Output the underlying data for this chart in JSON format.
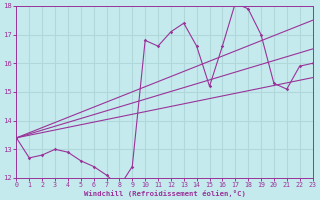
{
  "xlabel": "Windchill (Refroidissement éolien,°C)",
  "ylabel": "",
  "xlim": [
    0,
    23
  ],
  "ylim": [
    12,
    18
  ],
  "xticks": [
    0,
    1,
    2,
    3,
    4,
    5,
    6,
    7,
    8,
    9,
    10,
    11,
    12,
    13,
    14,
    15,
    16,
    17,
    18,
    19,
    20,
    21,
    22,
    23
  ],
  "yticks": [
    12,
    13,
    14,
    15,
    16,
    17,
    18
  ],
  "bg_color": "#c5eaed",
  "line_color": "#993399",
  "grid_color": "#b0d8db",
  "lines": [
    {
      "x": [
        0,
        1,
        2,
        3,
        4,
        5,
        6,
        7,
        8,
        9,
        10,
        11,
        12,
        13,
        14,
        15,
        16,
        17,
        18,
        19,
        20,
        21,
        22,
        23
      ],
      "y": [
        13.4,
        12.7,
        12.8,
        13.0,
        12.9,
        12.6,
        12.4,
        12.1,
        11.7,
        12.4,
        16.8,
        16.6,
        17.1,
        17.4,
        16.6,
        15.2,
        16.6,
        18.1,
        17.9,
        17.0,
        15.3,
        15.1,
        15.9,
        16.0
      ],
      "has_markers": true
    },
    {
      "x": [
        0,
        23
      ],
      "y": [
        13.4,
        17.5
      ],
      "has_markers": false
    },
    {
      "x": [
        0,
        23
      ],
      "y": [
        13.4,
        16.5
      ],
      "has_markers": false
    },
    {
      "x": [
        0,
        23
      ],
      "y": [
        13.4,
        15.5
      ],
      "has_markers": false
    }
  ]
}
